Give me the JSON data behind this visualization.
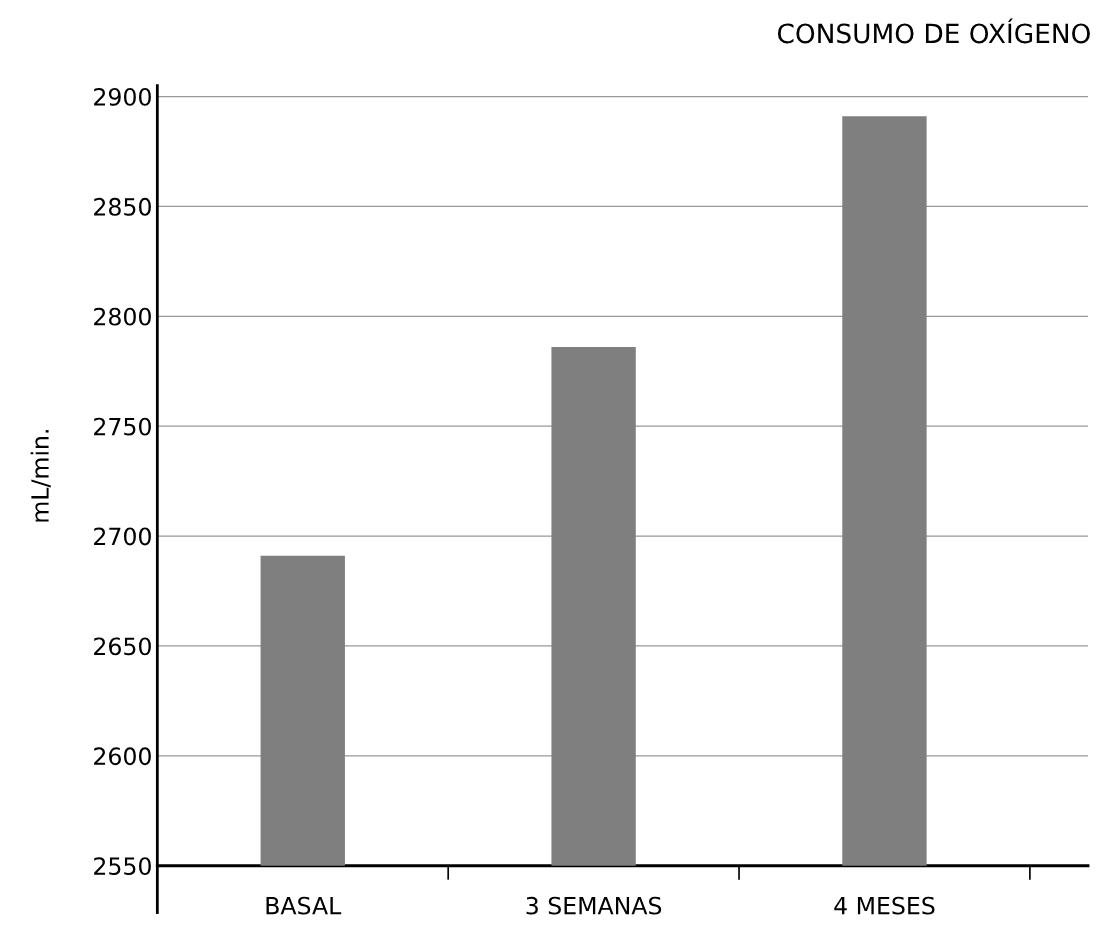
{
  "chart_data": {
    "type": "bar",
    "title": "CONSUMO DE OXÍGENO",
    "ylabel": "mL/min.",
    "categories": [
      "BASAL",
      "3 SEMANAS",
      "4 MESES"
    ],
    "values": [
      2691,
      2786,
      2891
    ],
    "color": "#7f7f7f",
    "ylim": [
      2550,
      2905
    ],
    "yticks": [
      2550,
      2600,
      2650,
      2700,
      2750,
      2800,
      2850,
      2900
    ],
    "grid": "y"
  }
}
